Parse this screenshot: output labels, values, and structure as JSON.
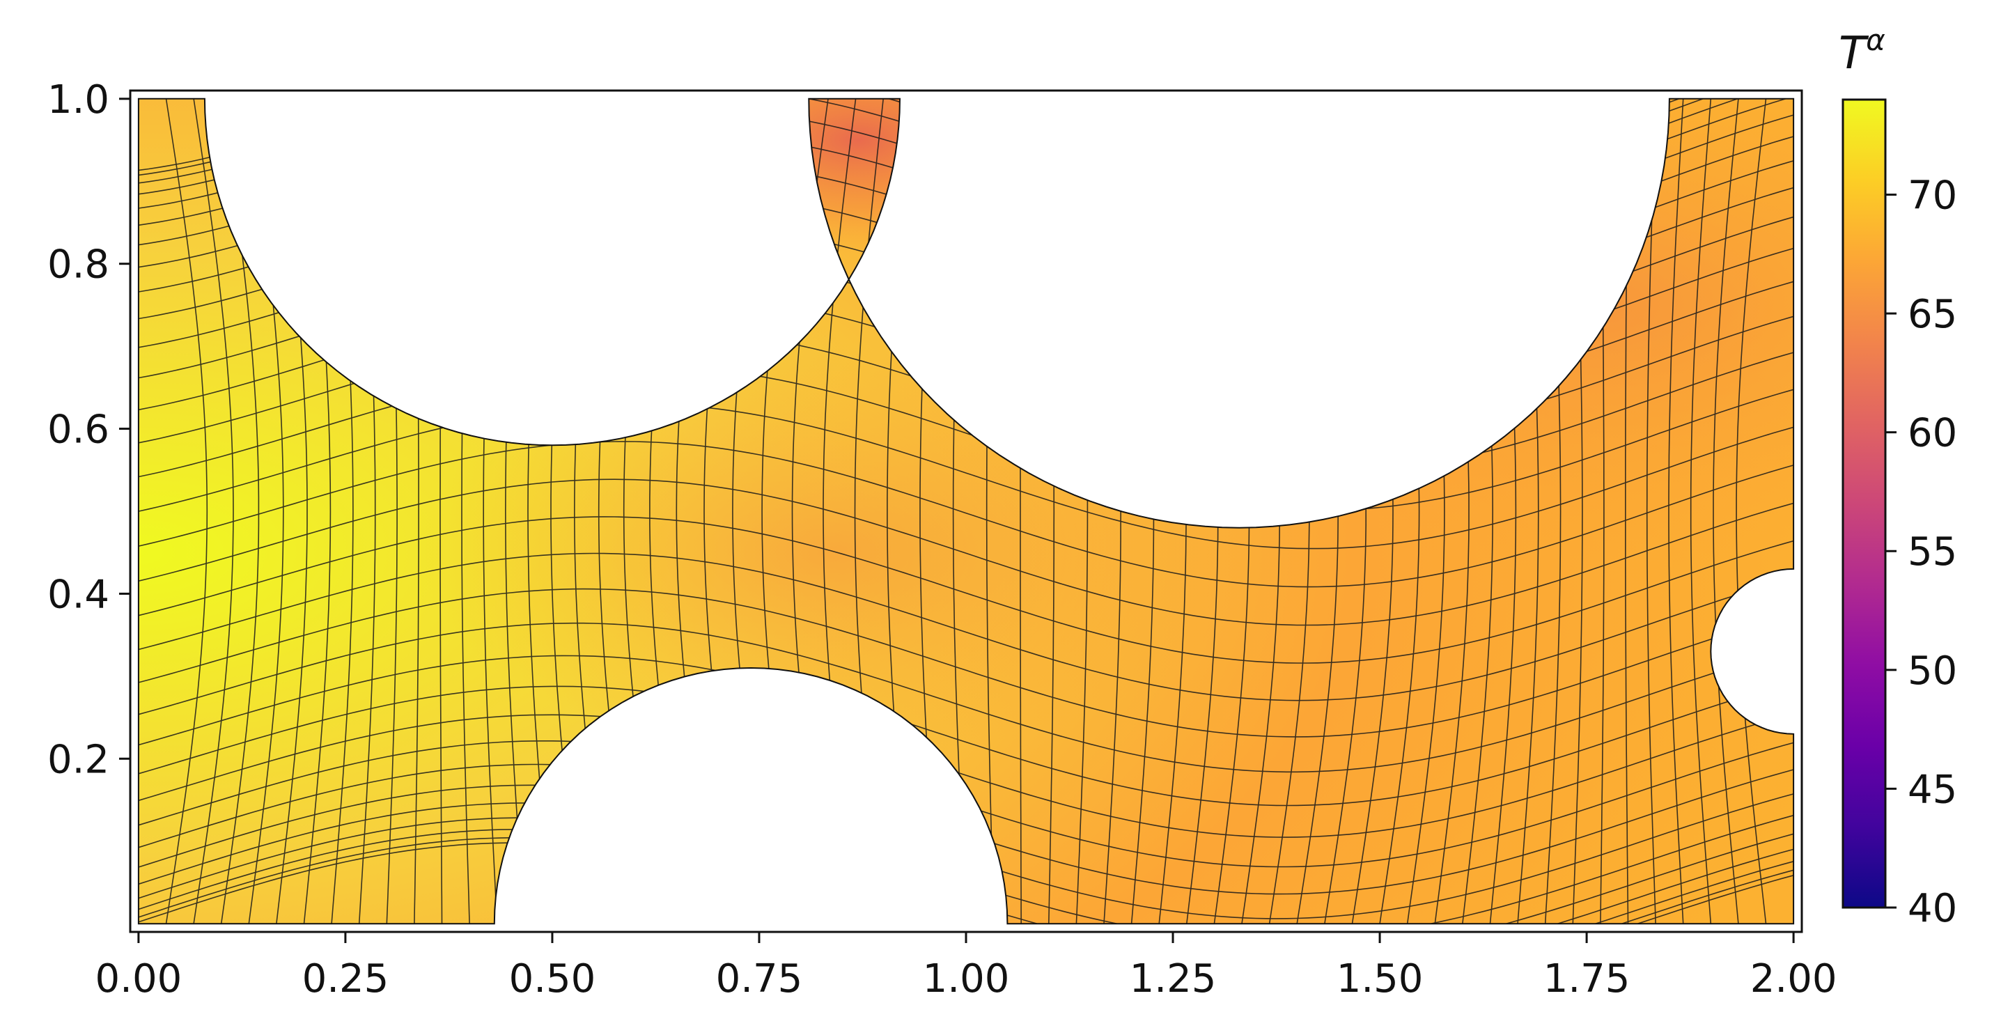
{
  "chart_data": {
    "type": "heatmap",
    "title": "",
    "xlabel": "",
    "ylabel": "",
    "xlim": [
      -0.01,
      2.01
    ],
    "ylim": [
      -0.01,
      1.01
    ],
    "xticks": [
      0.0,
      0.25,
      0.5,
      0.75,
      1.0,
      1.25,
      1.5,
      1.75,
      2.0
    ],
    "xtick_labels": [
      "0.00",
      "0.25",
      "0.50",
      "0.75",
      "1.00",
      "1.25",
      "1.50",
      "1.75",
      "2.00"
    ],
    "yticks": [
      0.2,
      0.4,
      0.6,
      0.8,
      1.0
    ],
    "ytick_labels": [
      "0.2",
      "0.4",
      "0.6",
      "0.8",
      "1.0"
    ],
    "colorbar": {
      "title": "T",
      "title_superscript": "α",
      "colormap": "plasma",
      "range": [
        40,
        74
      ],
      "ticks": [
        40,
        45,
        50,
        55,
        60,
        65,
        70
      ],
      "tick_labels": [
        "40",
        "45",
        "50",
        "55",
        "60",
        "65",
        "70"
      ]
    },
    "domain": {
      "x_range": [
        0.0,
        2.0
      ],
      "y_range": [
        0.0,
        1.0
      ],
      "holes": [
        {
          "side": "top",
          "center": [
            0.5,
            1.0
          ],
          "radius": 0.42
        },
        {
          "side": "top",
          "center": [
            1.33,
            1.0
          ],
          "radius": 0.52
        },
        {
          "side": "bottom",
          "center": [
            0.74,
            0.0
          ],
          "radius": 0.31
        },
        {
          "side": "right",
          "center": [
            2.0,
            0.33
          ],
          "radius": 0.1
        }
      ]
    },
    "temperature_samples": [
      {
        "x": 0.02,
        "y": 0.5,
        "T": 73
      },
      {
        "x": 0.2,
        "y": 0.2,
        "T": 72
      },
      {
        "x": 0.4,
        "y": 0.5,
        "T": 70
      },
      {
        "x": 0.75,
        "y": 0.45,
        "T": 67
      },
      {
        "x": 0.87,
        "y": 0.95,
        "T": 63
      },
      {
        "x": 0.88,
        "y": 0.75,
        "T": 65
      },
      {
        "x": 1.2,
        "y": 0.3,
        "T": 68
      },
      {
        "x": 1.5,
        "y": 0.15,
        "T": 69
      },
      {
        "x": 1.8,
        "y": 0.9,
        "T": 67
      },
      {
        "x": 1.9,
        "y": 0.1,
        "T": 69
      }
    ]
  }
}
